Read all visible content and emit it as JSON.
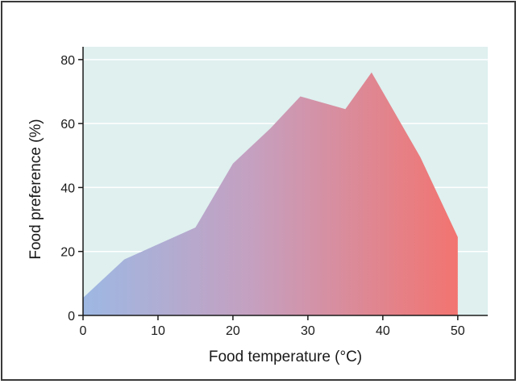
{
  "chart_data": {
    "type": "area",
    "xlabel": "Food temperature (°C)",
    "ylabel": "Food preference (%)",
    "xlim": [
      0,
      54
    ],
    "ylim": [
      0,
      84
    ],
    "xticks": [
      0,
      10,
      20,
      30,
      40,
      50
    ],
    "yticks": [
      0,
      20,
      40,
      60,
      80
    ],
    "grid": "horizontal",
    "series": [
      {
        "x": [
          0,
          5.5,
          15,
          20,
          25,
          29,
          35,
          38.5,
          45,
          50,
          50
        ],
        "y": [
          5.5,
          17.5,
          27.5,
          47.5,
          58.5,
          68.5,
          64.5,
          76,
          49.5,
          24.5,
          0
        ]
      }
    ],
    "colors": {
      "plot_background": "#dff0ef",
      "gridline": "#ffffff",
      "fill_start": "#9db8e3",
      "fill_mid": "#c5a0c0",
      "fill_end": "#f27470",
      "axis": "#1a1a1a"
    }
  }
}
